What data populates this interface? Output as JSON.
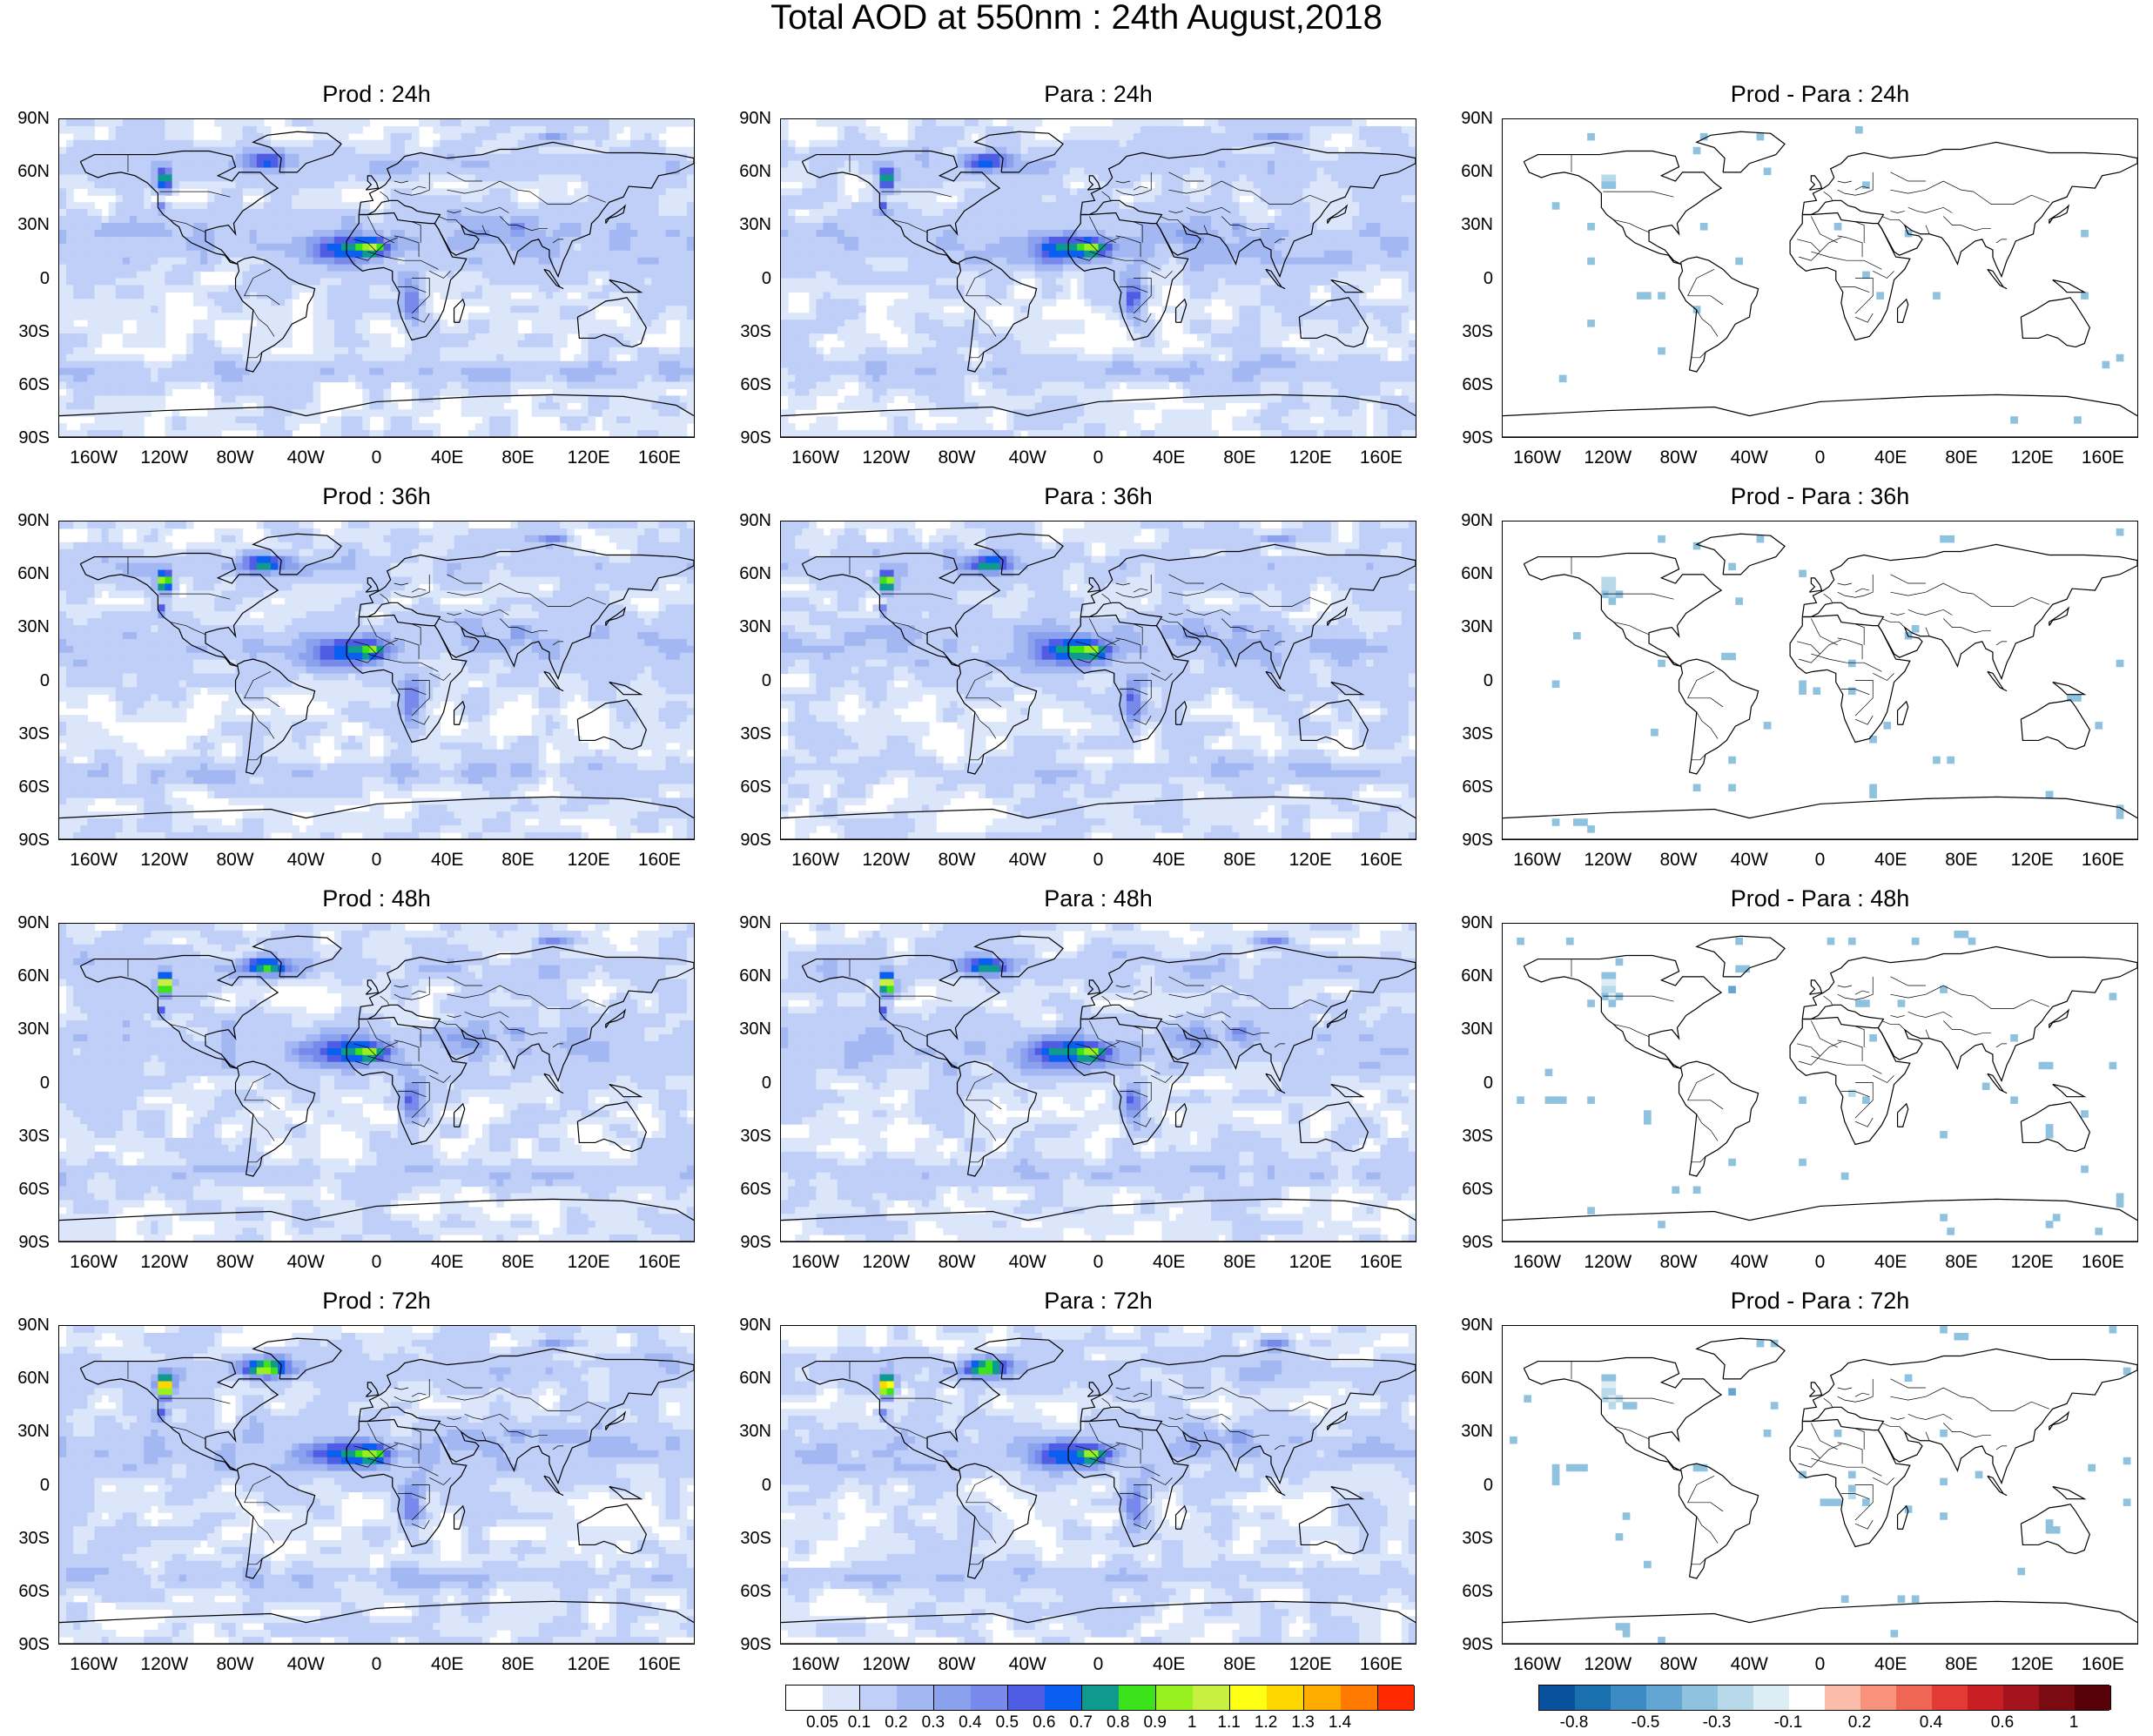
{
  "figure": {
    "title": "Total AOD at 550nm : 24th August,2018"
  },
  "panels": [
    {
      "title": "Prod : 24h",
      "kind": "aod"
    },
    {
      "title": "Para : 24h",
      "kind": "aod"
    },
    {
      "title": "Prod - Para : 24h",
      "kind": "diff"
    },
    {
      "title": "Prod : 36h",
      "kind": "aod"
    },
    {
      "title": "Para : 36h",
      "kind": "aod"
    },
    {
      "title": "Prod - Para : 36h",
      "kind": "diff"
    },
    {
      "title": "Prod : 48h",
      "kind": "aod"
    },
    {
      "title": "Para : 48h",
      "kind": "aod"
    },
    {
      "title": "Prod - Para : 48h",
      "kind": "diff"
    },
    {
      "title": "Prod : 72h",
      "kind": "aod"
    },
    {
      "title": "Para : 72h",
      "kind": "aod"
    },
    {
      "title": "Prod - Para : 72h",
      "kind": "diff"
    }
  ],
  "axes": {
    "lat_labels": [
      "90N",
      "60N",
      "30N",
      "0",
      "30S",
      "60S",
      "90S"
    ],
    "lon_labels": [
      "160W",
      "120W",
      "80W",
      "40W",
      "0",
      "40E",
      "80E",
      "120E",
      "160E"
    ],
    "lon_range": [
      -180,
      180
    ],
    "lat_range": [
      -90,
      90
    ]
  },
  "colorbar_aod": {
    "labels": [
      "0.05",
      "0.1",
      "0.2",
      "0.3",
      "0.4",
      "0.5",
      "0.6",
      "0.7",
      "0.8",
      "0.9",
      "1",
      "1.1",
      "1.2",
      "1.3",
      "1.4"
    ],
    "colors": [
      "#ffffff",
      "#dce6fb",
      "#bfcff7",
      "#a3b8f2",
      "#8aa2ee",
      "#7789ea",
      "#4f5de4",
      "#0a5ef0",
      "#0f9a8f",
      "#3de31a",
      "#99f01f",
      "#c8f040",
      "#ffff14",
      "#ffd700",
      "#ffab00",
      "#ff7a00",
      "#ff2a00"
    ]
  },
  "colorbar_diff": {
    "labels": [
      "-0.8",
      "-0.5",
      "-0.3",
      "-0.1",
      "0.2",
      "0.4",
      "0.6",
      "1"
    ],
    "colors": [
      "#08519c",
      "#1a6faf",
      "#3d8bc4",
      "#63a6d3",
      "#8ec2df",
      "#b7d9ea",
      "#dcedf6",
      "#ffffff",
      "#fbbcaa",
      "#f8927a",
      "#f06655",
      "#e23b36",
      "#c81f25",
      "#a3141c",
      "#7c0a12",
      "#570008"
    ]
  },
  "chart_data": {
    "type": "heatmap",
    "title": "Total AOD at 550nm : 24th August,2018",
    "x_axis": {
      "label": "",
      "ticks": [
        "160W",
        "120W",
        "80W",
        "40W",
        "0",
        "40E",
        "80E",
        "120E",
        "160E"
      ],
      "range": [
        -180,
        180
      ]
    },
    "y_axis": {
      "label": "",
      "ticks": [
        "90N",
        "60N",
        "30N",
        "0",
        "30S",
        "60S",
        "90S"
      ],
      "range": [
        -90,
        90
      ]
    },
    "aod_levels": [
      0.05,
      0.1,
      0.2,
      0.3,
      0.4,
      0.5,
      0.6,
      0.7,
      0.8,
      0.9,
      1,
      1.1,
      1.2,
      1.3,
      1.4
    ],
    "diff_levels": [
      -0.8,
      -0.5,
      -0.3,
      -0.1,
      0.2,
      0.4,
      0.6,
      1
    ],
    "grid": false
  }
}
